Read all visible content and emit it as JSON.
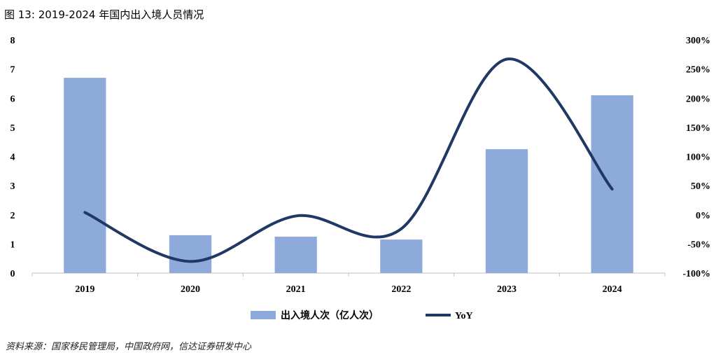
{
  "figure": {
    "label": "图 13:",
    "title": "2019-2024 年国内出入境人员情况"
  },
  "source": "资料来源：国家移民管理局，中国政府网，信达证券研发中心",
  "colors": {
    "bar": "#8eaadb",
    "line": "#1f3864",
    "axis": "#bfbfbf"
  },
  "chart_data": {
    "type": "bar",
    "categories": [
      "2019",
      "2020",
      "2021",
      "2022",
      "2023",
      "2024"
    ],
    "series": [
      {
        "name": "出入境人次（亿人次）",
        "type": "bar",
        "axis": "left",
        "values": [
          6.7,
          1.3,
          1.25,
          1.15,
          4.25,
          6.1
        ]
      },
      {
        "name": "YoY",
        "type": "line",
        "axis": "right",
        "smooth": true,
        "values": [
          4,
          -80,
          -2,
          -24,
          267,
          44
        ]
      }
    ],
    "ylim_left": [
      0,
      8
    ],
    "yticks_left": [
      "0",
      "1",
      "2",
      "3",
      "4",
      "5",
      "6",
      "7",
      "8"
    ],
    "ylim_right": [
      -100,
      300
    ],
    "yticks_right": [
      "-100%",
      "-50%",
      "0%",
      "50%",
      "100%",
      "150%",
      "200%",
      "250%",
      "300%"
    ],
    "grid": false,
    "legend_position": "bottom"
  }
}
